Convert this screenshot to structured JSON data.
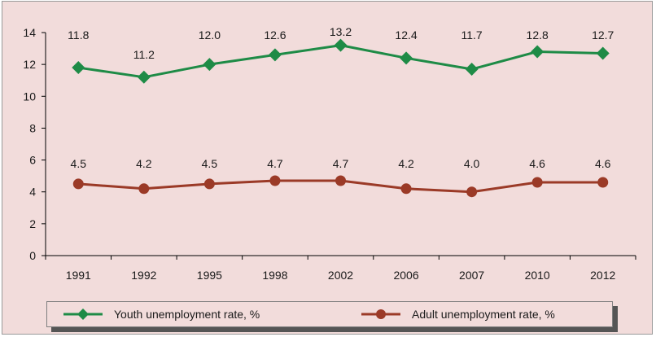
{
  "chart_data": {
    "type": "line",
    "title": "",
    "xlabel": "",
    "ylabel": "",
    "categories": [
      "1991",
      "1992",
      "1995",
      "1998",
      "2002",
      "2006",
      "2007",
      "2010",
      "2012"
    ],
    "ylim": [
      0,
      14
    ],
    "yticks": [
      0,
      2,
      4,
      6,
      8,
      10,
      12,
      14
    ],
    "ytick_labels": [
      "0",
      "2",
      "4",
      "6",
      "8",
      "10",
      "12",
      "14"
    ],
    "grid": false,
    "legend_position": "bottom",
    "series": [
      {
        "name": "Youth unemployment rate, %",
        "color": "#1e8b46",
        "marker": "diamond",
        "values": [
          11.8,
          11.2,
          12.0,
          12.6,
          13.2,
          12.4,
          11.7,
          12.8,
          12.7
        ],
        "labels": [
          "11.8",
          "11.2",
          "12.0",
          "12.6",
          "13.2",
          "12.4",
          "11.7",
          "12.8",
          "12.7"
        ]
      },
      {
        "name": "Adult unemployment rate, %",
        "color": "#9b3a27",
        "marker": "circle",
        "values": [
          4.5,
          4.2,
          4.5,
          4.7,
          4.7,
          4.2,
          4.0,
          4.6,
          4.6
        ],
        "labels": [
          "4.5",
          "4.2",
          "4.5",
          "4.7",
          "4.7",
          "4.2",
          "4.0",
          "4.6",
          "4.6"
        ]
      }
    ]
  }
}
